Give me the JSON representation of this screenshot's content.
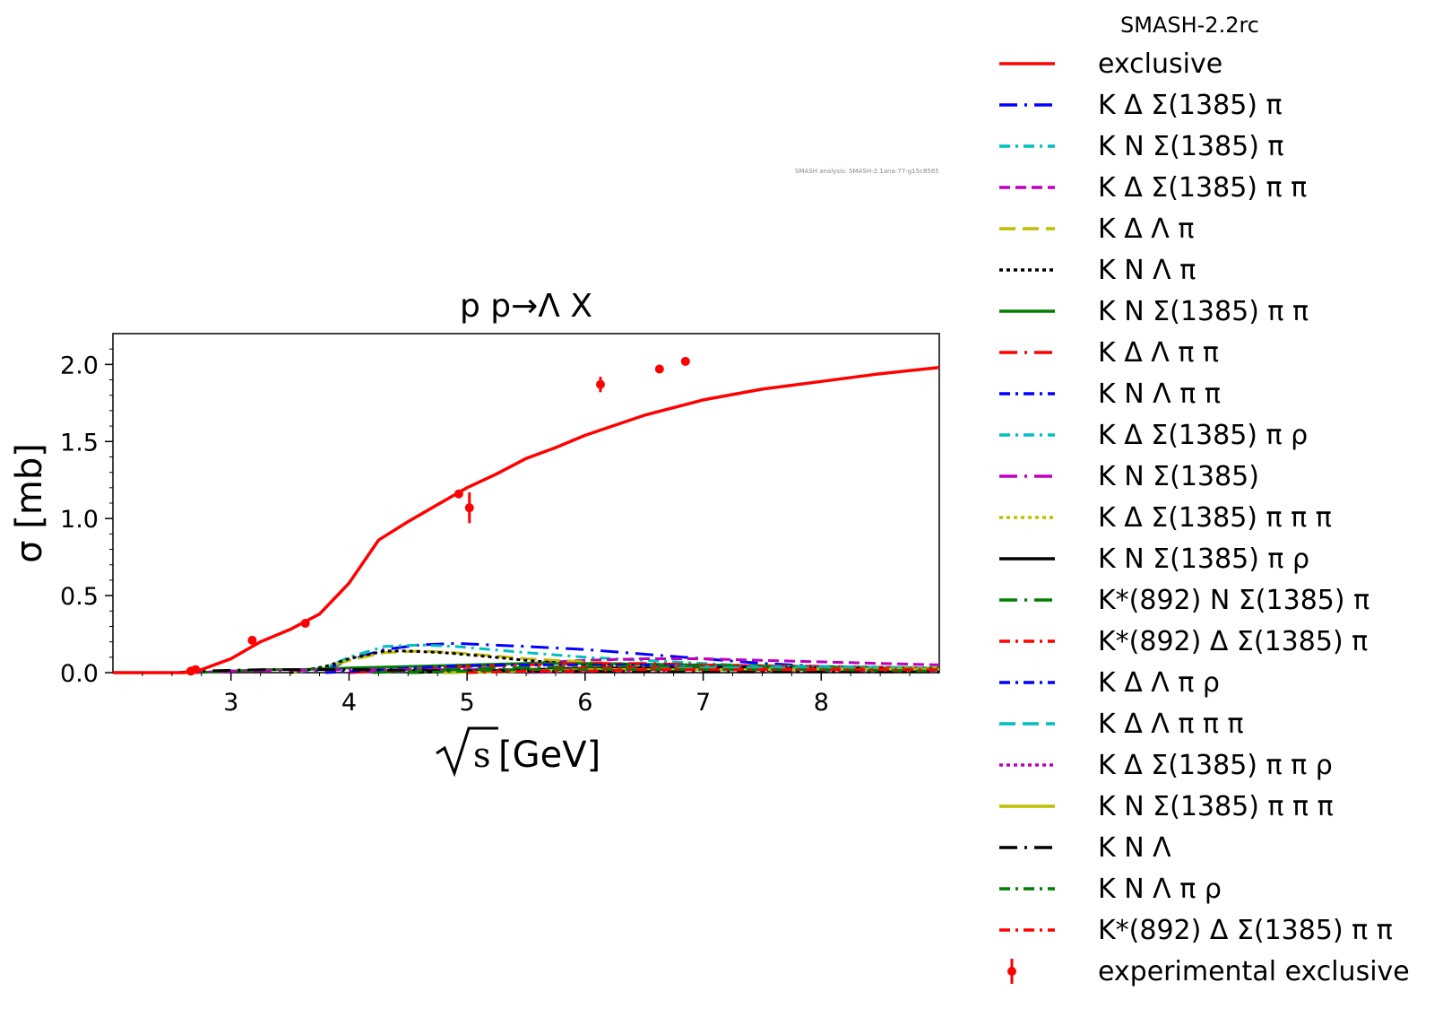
{
  "chart_data": {
    "type": "line",
    "title": "p p→Λ X",
    "xlabel_root": "s",
    "xlabel_unit": "[GeV]",
    "ylabel": "σ [mb]",
    "xlim": [
      2.0,
      9.0
    ],
    "ylim": [
      0.0,
      2.2
    ],
    "xticks": [
      3,
      4,
      5,
      6,
      7,
      8
    ],
    "yticks": [
      0.0,
      0.5,
      1.0,
      1.5,
      2.0
    ],
    "watermark": "SMASH analysis: SMASH-2.1ana-77-g15c8565",
    "legend_title": "SMASH-2.2rc",
    "legend_placement": "outside-right",
    "series": [
      {
        "name": "exclusive",
        "color": "#ff0000",
        "dash": "solid",
        "x": [
          2.0,
          2.6,
          2.75,
          3.0,
          3.25,
          3.5,
          3.75,
          4.0,
          4.25,
          4.5,
          4.75,
          5.0,
          5.25,
          5.5,
          5.75,
          6.0,
          6.5,
          7.0,
          7.5,
          8.0,
          8.5,
          9.0
        ],
        "y": [
          0.0,
          0.0,
          0.02,
          0.09,
          0.2,
          0.28,
          0.38,
          0.58,
          0.86,
          0.98,
          1.09,
          1.2,
          1.29,
          1.39,
          1.46,
          1.54,
          1.67,
          1.77,
          1.84,
          1.89,
          1.94,
          1.98
        ]
      },
      {
        "name": "K Δ Σ(1385) π",
        "color": "#0000ff",
        "dash": "longdash-dot",
        "x": [
          3.5,
          3.8,
          4.0,
          4.3,
          4.6,
          4.9,
          5.2,
          5.5,
          6.0,
          6.5,
          7.0,
          7.5,
          8.0,
          9.0
        ],
        "y": [
          0.0,
          0.02,
          0.08,
          0.15,
          0.18,
          0.19,
          0.18,
          0.17,
          0.15,
          0.12,
          0.09,
          0.06,
          0.04,
          0.02
        ]
      },
      {
        "name": "K N Σ(1385) π",
        "color": "#00bfbf",
        "dash": "dashdot",
        "x": [
          3.5,
          3.8,
          4.0,
          4.3,
          4.6,
          4.9,
          5.2,
          5.5,
          6.0,
          6.5,
          7.0,
          7.5,
          8.0,
          9.0
        ],
        "y": [
          0.0,
          0.03,
          0.1,
          0.17,
          0.18,
          0.17,
          0.15,
          0.13,
          0.1,
          0.08,
          0.06,
          0.04,
          0.03,
          0.02
        ]
      },
      {
        "name": "K Δ Σ(1385) π π",
        "color": "#bf00bf",
        "dash": "dashed",
        "x": [
          4.0,
          4.5,
          5.0,
          5.5,
          6.0,
          6.5,
          7.0,
          7.5,
          8.0,
          8.5,
          9.0
        ],
        "y": [
          0.0,
          0.02,
          0.04,
          0.06,
          0.08,
          0.09,
          0.09,
          0.08,
          0.07,
          0.06,
          0.05
        ]
      },
      {
        "name": "K Δ Λ π",
        "color": "#bfbf00",
        "dash": "longdash",
        "x": [
          3.5,
          3.8,
          4.0,
          4.3,
          4.6,
          4.9,
          5.2,
          5.5,
          6.0,
          6.5,
          7.0,
          8.0,
          9.0
        ],
        "y": [
          0.0,
          0.03,
          0.08,
          0.13,
          0.14,
          0.13,
          0.11,
          0.09,
          0.07,
          0.05,
          0.04,
          0.02,
          0.01
        ]
      },
      {
        "name": "K N Λ π",
        "color": "#000000",
        "dash": "dotted",
        "x": [
          3.5,
          3.8,
          4.0,
          4.3,
          4.5,
          4.8,
          5.1,
          5.5,
          6.0,
          6.5,
          7.0,
          8.0,
          9.0
        ],
        "y": [
          0.0,
          0.04,
          0.09,
          0.14,
          0.14,
          0.13,
          0.11,
          0.08,
          0.05,
          0.03,
          0.02,
          0.01,
          0.01
        ]
      },
      {
        "name": "K N Σ(1385) π π",
        "color": "#007f00",
        "dash": "solid",
        "x": [
          2.7,
          3.0,
          3.3,
          3.6,
          4.0,
          4.5,
          5.0,
          5.5,
          6.0,
          7.0,
          8.0,
          9.0
        ],
        "y": [
          0.0,
          0.01,
          0.02,
          0.02,
          0.03,
          0.04,
          0.05,
          0.06,
          0.06,
          0.05,
          0.04,
          0.03
        ]
      },
      {
        "name": "K Δ Λ π π",
        "color": "#ff0000",
        "dash": "longdash-dot",
        "x": [
          4.0,
          4.5,
          5.0,
          5.5,
          6.0,
          6.5,
          7.0,
          8.0,
          9.0
        ],
        "y": [
          0.0,
          0.02,
          0.04,
          0.05,
          0.06,
          0.06,
          0.05,
          0.04,
          0.03
        ]
      },
      {
        "name": "K N Λ π π",
        "color": "#0000ff",
        "dash": "dashdot",
        "x": [
          3.8,
          4.3,
          4.8,
          5.3,
          6.0,
          6.5,
          7.0,
          8.0,
          9.0
        ],
        "y": [
          0.0,
          0.02,
          0.04,
          0.05,
          0.05,
          0.05,
          0.04,
          0.03,
          0.02
        ]
      },
      {
        "name": "K Δ Σ(1385) π ρ",
        "color": "#00bfbf",
        "dash": "dashdot",
        "x": [
          4.5,
          5.0,
          5.5,
          6.0,
          6.5,
          7.0,
          8.0,
          9.0
        ],
        "y": [
          0.0,
          0.01,
          0.02,
          0.03,
          0.04,
          0.04,
          0.04,
          0.03
        ]
      },
      {
        "name": "K N Σ(1385)",
        "color": "#bf00bf",
        "dash": "longdash-dot",
        "x": [
          2.6,
          3.0,
          3.5,
          4.0,
          4.5,
          5.0,
          5.5,
          6.0,
          6.5,
          7.0,
          8.0,
          9.0
        ],
        "y": [
          0.0,
          0.01,
          0.015,
          0.02,
          0.02,
          0.02,
          0.02,
          0.02,
          0.02,
          0.02,
          0.015,
          0.01
        ]
      },
      {
        "name": "K Δ Σ(1385) π π π",
        "color": "#bfbf00",
        "dash": "dotted",
        "x": [
          5.0,
          5.5,
          6.0,
          6.5,
          7.0,
          8.0,
          9.0
        ],
        "y": [
          0.0,
          0.01,
          0.02,
          0.03,
          0.03,
          0.03,
          0.03
        ]
      },
      {
        "name": "K N Σ(1385) π ρ",
        "color": "#000000",
        "dash": "solid",
        "x": [
          4.5,
          5.0,
          5.5,
          6.0,
          6.5,
          7.0,
          8.0,
          9.0
        ],
        "y": [
          0.0,
          0.01,
          0.02,
          0.03,
          0.03,
          0.03,
          0.03,
          0.02
        ]
      },
      {
        "name": "K*(892) N Σ(1385) π",
        "color": "#007f00",
        "dash": "longdash-dot",
        "x": [
          4.2,
          4.8,
          5.3,
          6.0,
          6.5,
          7.0,
          8.0,
          9.0
        ],
        "y": [
          0.0,
          0.02,
          0.03,
          0.04,
          0.04,
          0.04,
          0.03,
          0.02
        ]
      },
      {
        "name": "K*(892) Δ Σ(1385) π",
        "color": "#ff0000",
        "dash": "dashdot",
        "x": [
          4.5,
          5.0,
          5.5,
          6.0,
          6.5,
          7.0,
          8.0,
          9.0
        ],
        "y": [
          0.0,
          0.01,
          0.02,
          0.03,
          0.03,
          0.03,
          0.03,
          0.02
        ]
      },
      {
        "name": "K Δ Λ π ρ",
        "color": "#0000ff",
        "dash": "dashdot",
        "x": [
          4.8,
          5.3,
          6.0,
          6.5,
          7.0,
          8.0,
          9.0
        ],
        "y": [
          0.0,
          0.01,
          0.02,
          0.02,
          0.02,
          0.02,
          0.02
        ]
      },
      {
        "name": "K Δ Λ π π π",
        "color": "#00bfbf",
        "dash": "longdash",
        "x": [
          4.8,
          5.5,
          6.0,
          6.5,
          7.0,
          8.0,
          9.0
        ],
        "y": [
          0.0,
          0.01,
          0.02,
          0.02,
          0.03,
          0.03,
          0.02
        ]
      },
      {
        "name": "K Δ Σ(1385) π π ρ",
        "color": "#bf00bf",
        "dash": "dotted",
        "x": [
          5.5,
          6.0,
          6.5,
          7.0,
          8.0,
          9.0
        ],
        "y": [
          0.0,
          0.01,
          0.01,
          0.02,
          0.02,
          0.02
        ]
      },
      {
        "name": "K N Σ(1385) π π π",
        "color": "#bfbf00",
        "dash": "solid",
        "x": [
          4.8,
          5.5,
          6.0,
          6.5,
          7.0,
          8.0,
          9.0
        ],
        "y": [
          0.0,
          0.01,
          0.02,
          0.02,
          0.02,
          0.02,
          0.02
        ]
      },
      {
        "name": "K N Λ",
        "color": "#000000",
        "dash": "longdash-dot",
        "x": [
          2.55,
          2.7,
          3.0,
          3.3,
          3.6,
          4.0,
          4.5,
          5.0,
          6.0,
          7.0,
          8.0,
          9.0
        ],
        "y": [
          0.0,
          0.01,
          0.015,
          0.02,
          0.02,
          0.02,
          0.015,
          0.01,
          0.01,
          0.005,
          0.005,
          0.005
        ]
      },
      {
        "name": "K N Λ π ρ",
        "color": "#007f00",
        "dash": "dashdot",
        "x": [
          4.5,
          5.0,
          5.5,
          6.0,
          6.5,
          7.0,
          8.0,
          9.0
        ],
        "y": [
          0.0,
          0.01,
          0.02,
          0.02,
          0.02,
          0.02,
          0.02,
          0.01
        ]
      },
      {
        "name": "K*(892) Δ Σ(1385) π π",
        "color": "#ff0000",
        "dash": "dashdot",
        "x": [
          5.0,
          5.5,
          6.0,
          6.5,
          7.0,
          8.0,
          9.0
        ],
        "y": [
          0.0,
          0.01,
          0.01,
          0.02,
          0.02,
          0.02,
          0.02
        ]
      }
    ],
    "experimental": {
      "name": "experimental exclusive",
      "color": "#ff0000",
      "points": [
        {
          "x": 2.66,
          "y": 0.01,
          "err": 0.0
        },
        {
          "x": 2.7,
          "y": 0.02,
          "err": 0.0
        },
        {
          "x": 3.18,
          "y": 0.21,
          "err": 0.0
        },
        {
          "x": 3.63,
          "y": 0.32,
          "err": 0.0
        },
        {
          "x": 4.93,
          "y": 1.16,
          "err": 0.0
        },
        {
          "x": 5.02,
          "y": 1.07,
          "err": 0.1
        },
        {
          "x": 6.13,
          "y": 1.87,
          "err": 0.05
        },
        {
          "x": 6.63,
          "y": 1.97,
          "err": 0.02
        },
        {
          "x": 6.85,
          "y": 2.02,
          "err": 0.0
        }
      ]
    }
  }
}
